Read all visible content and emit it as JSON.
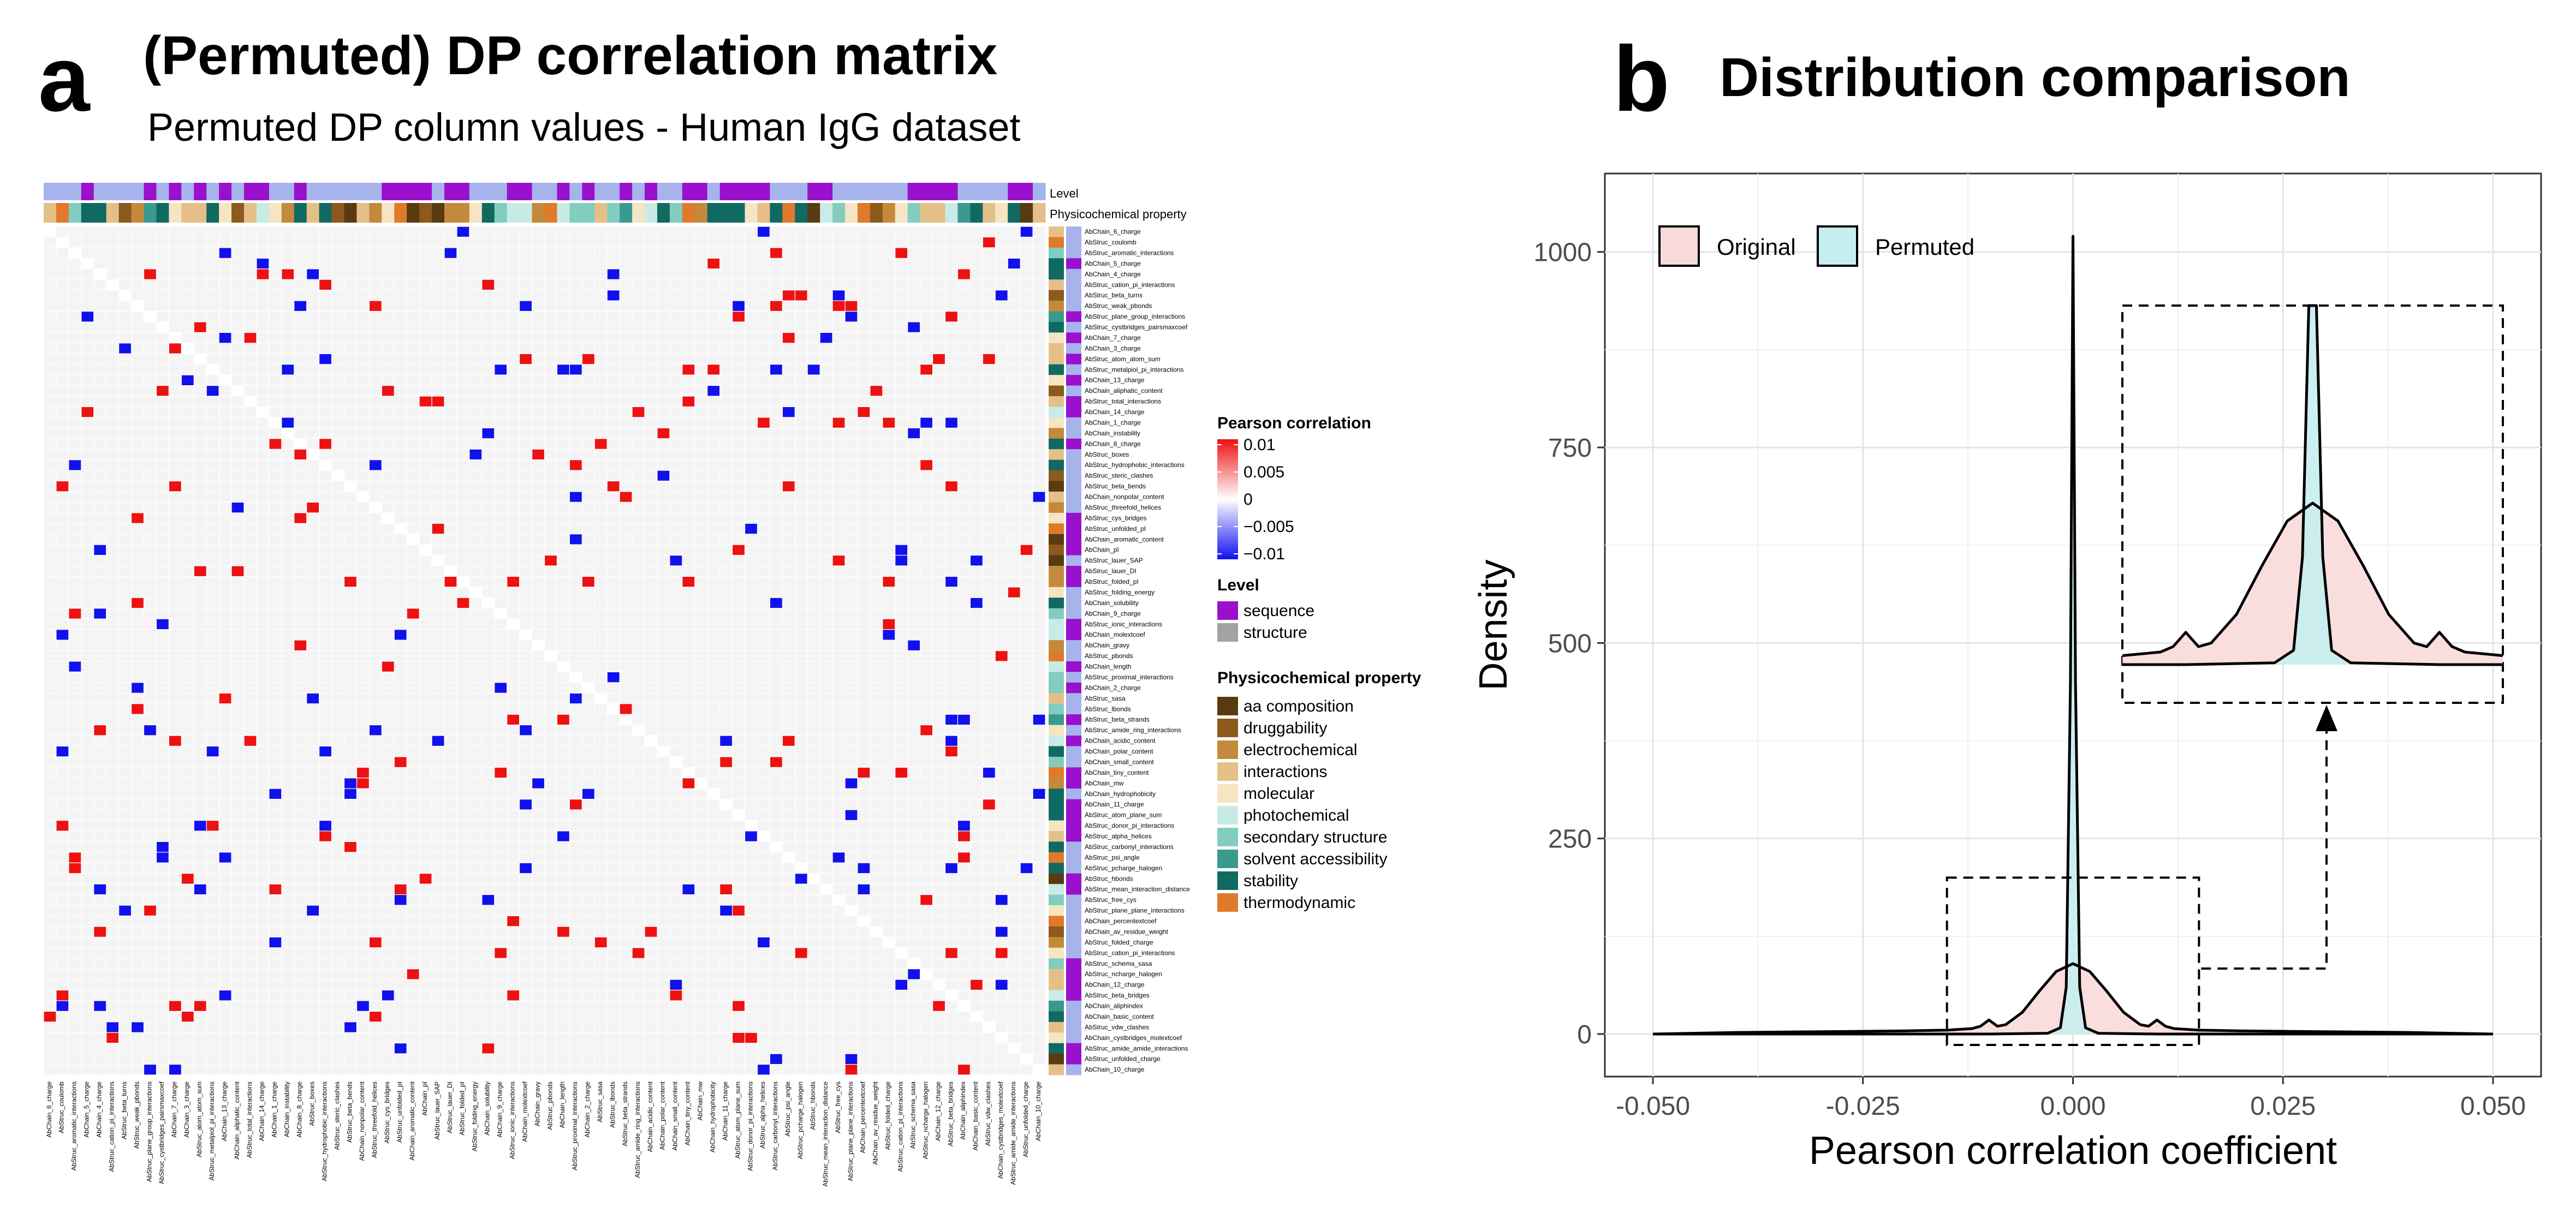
{
  "panel_a": {
    "letter": "a",
    "title": "(Permuted) DP correlation matrix",
    "subtitle": "Permuted DP column values - Human IgG dataset"
  },
  "panel_b": {
    "letter": "b",
    "title": "Distribution comparison"
  },
  "chart_data": [
    {
      "type": "heatmap",
      "title": "(Permuted) DP correlation matrix",
      "subtitle": "Permuted DP column values - Human IgG dataset",
      "annotation_tracks": [
        "Level",
        "Physicochemical property"
      ],
      "row_labels": [
        "AbChain_6_charge",
        "AbStruc_coulomb",
        "AbStruc_aromatic_interactions",
        "AbChain_5_charge",
        "AbChain_4_charge",
        "AbStruc_cation_pi_interactions",
        "AbStruc_beta_turns",
        "AbStruc_weak_pbonds",
        "AbStruc_plane_group_interactions",
        "AbStruc_cystbridges_pairsmaxcoef",
        "AbChain_7_charge",
        "AbChain_3_charge",
        "AbStruc_atom_atom_sum",
        "AbStruc_metalpiol_pi_interactions",
        "AbChain_13_charge",
        "AbChain_aliphatic_content",
        "AbStruc_total_interactions",
        "AbChain_14_charge",
        "AbChain_1_charge",
        "AbChain_instability",
        "AbChain_8_charge",
        "AbStruc_boxes",
        "AbStruc_hydrophobic_interactions",
        "AbStruc_steric_clashes",
        "AbStruc_beta_bends",
        "AbChain_nonpolar_content",
        "AbStruc_threefold_helices",
        "AbStruc_cys_bridges",
        "AbStruc_unfolded_pI",
        "AbChain_aromatic_content",
        "AbChain_pI",
        "AbStruc_lauer_SAP",
        "AbStruc_lauer_DI",
        "AbStruc_folded_pI",
        "AbStruc_folding_energy",
        "AbChain_solubility",
        "AbChain_9_charge",
        "AbStruc_ionic_interactions",
        "AbChain_molextcoef",
        "AbChain_gravy",
        "AbStruc_pbonds",
        "AbChain_length",
        "AbStruc_proximal_interactions",
        "AbChain_2_charge",
        "AbStruc_sasa",
        "AbStruc_lbonds",
        "AbStruc_beta_strands",
        "AbStruc_amide_ring_interactions",
        "AbChain_acidic_content",
        "AbChain_polar_content",
        "AbChain_small_content",
        "AbChain_tiny_content",
        "AbChain_mw",
        "AbChain_hydrophobicity",
        "AbChain_11_charge",
        "AbStruc_atom_plane_sum",
        "AbStruc_donor_pi_interactions",
        "AbStruc_alpha_helices",
        "AbStruc_carbonyl_interactions",
        "AbStruc_psi_angle",
        "AbStruc_pcharge_halogen",
        "AbStruc_hbonds",
        "AbStruc_mean_interaction_distance",
        "AbStruc_free_cys",
        "AbStruc_plane_plane_interactions",
        "AbChain_percentextcoef",
        "AbChain_av_residue_weight",
        "AbStruc_folded_charge",
        "AbStruc_cation_pi_interactions",
        "AbStruc_schema_sasa",
        "AbStruc_ncharge_halogen",
        "AbChain_12_charge",
        "AbStruc_beta_bridges",
        "AbChain_aliphindex",
        "AbChain_basic_content",
        "AbStruc_vdw_clashes",
        "AbChain_cystbridges_molextcoef",
        "AbStruc_amide_amide_interactions",
        "AbStruc_unfolded_charge",
        "AbChain_10_charge"
      ],
      "colorbar": {
        "title": "Pearson correlation",
        "ticks": [
          "0.01",
          "0.005",
          "0",
          "−0.005",
          "−0.01"
        ],
        "range": [
          -0.01,
          0.01
        ],
        "colors": {
          "high": "#ee1111",
          "mid": "#ffffff",
          "low": "#1111ee"
        }
      },
      "level_legend": {
        "title": "Level",
        "items": [
          {
            "label": "sequence",
            "color": "#9911cc"
          },
          {
            "label": "structure",
            "color": "#a2a2a2"
          }
        ],
        "track_colors": {
          "sequence": "#9911cc",
          "structure": "#a7b4ec"
        }
      },
      "property_legend": {
        "title": "Physicochemical property",
        "items": [
          {
            "label": "aa composition",
            "color": "#5a3a10"
          },
          {
            "label": "druggability",
            "color": "#8b5a1c"
          },
          {
            "label": "electrochemical",
            "color": "#c48a3c"
          },
          {
            "label": "interactions",
            "color": "#e4c088"
          },
          {
            "label": "molecular",
            "color": "#f5e5c3"
          },
          {
            "label": "photochemical",
            "color": "#c9ebe6"
          },
          {
            "label": "secondary structure",
            "color": "#82cdbf"
          },
          {
            "label": "solvent accessibility",
            "color": "#3b9a8f"
          },
          {
            "label": "stability",
            "color": "#106a61"
          },
          {
            "label": "thermodynamic",
            "color": "#df7a2a"
          }
        ]
      }
    },
    {
      "type": "area",
      "title": "Distribution comparison",
      "xlabel": "Pearson correlation coefficient",
      "ylabel": "Density",
      "xlim": [
        -0.05,
        0.05
      ],
      "ylim": [
        0,
        1050
      ],
      "x_ticks": [
        "-0.050",
        "-0.025",
        "0.000",
        "0.025",
        "0.050"
      ],
      "y_ticks": [
        "0",
        "250",
        "500",
        "750",
        "1000"
      ],
      "grid": true,
      "legend_position": "top-left",
      "series": [
        {
          "name": "Original",
          "fill": "#f9dada",
          "x": [
            -0.05,
            -0.04,
            -0.03,
            -0.02,
            -0.015,
            -0.012,
            -0.011,
            -0.01,
            -0.009,
            -0.008,
            -0.006,
            -0.004,
            -0.002,
            0.0,
            0.002,
            0.004,
            0.006,
            0.008,
            0.009,
            0.01,
            0.011,
            0.012,
            0.015,
            0.02,
            0.03,
            0.04,
            0.05
          ],
          "y": [
            0,
            2,
            3,
            4,
            5,
            7,
            10,
            18,
            10,
            12,
            28,
            55,
            80,
            90,
            80,
            55,
            28,
            12,
            10,
            18,
            10,
            7,
            5,
            4,
            3,
            2,
            0
          ]
        },
        {
          "name": "Permuted",
          "fill": "#c6eef0",
          "x": [
            -0.05,
            -0.01,
            -0.003,
            -0.0015,
            -0.0008,
            -0.0003,
            0.0,
            0.0003,
            0.0008,
            0.0015,
            0.003,
            0.01,
            0.05
          ],
          "y": [
            0,
            0,
            1,
            8,
            60,
            450,
            1020,
            450,
            60,
            8,
            1,
            0,
            0
          ]
        }
      ],
      "inset": {
        "description_source_zoom": {
          "x": [
            -0.015,
            0.015
          ],
          "y": [
            0,
            200
          ]
        }
      }
    }
  ]
}
